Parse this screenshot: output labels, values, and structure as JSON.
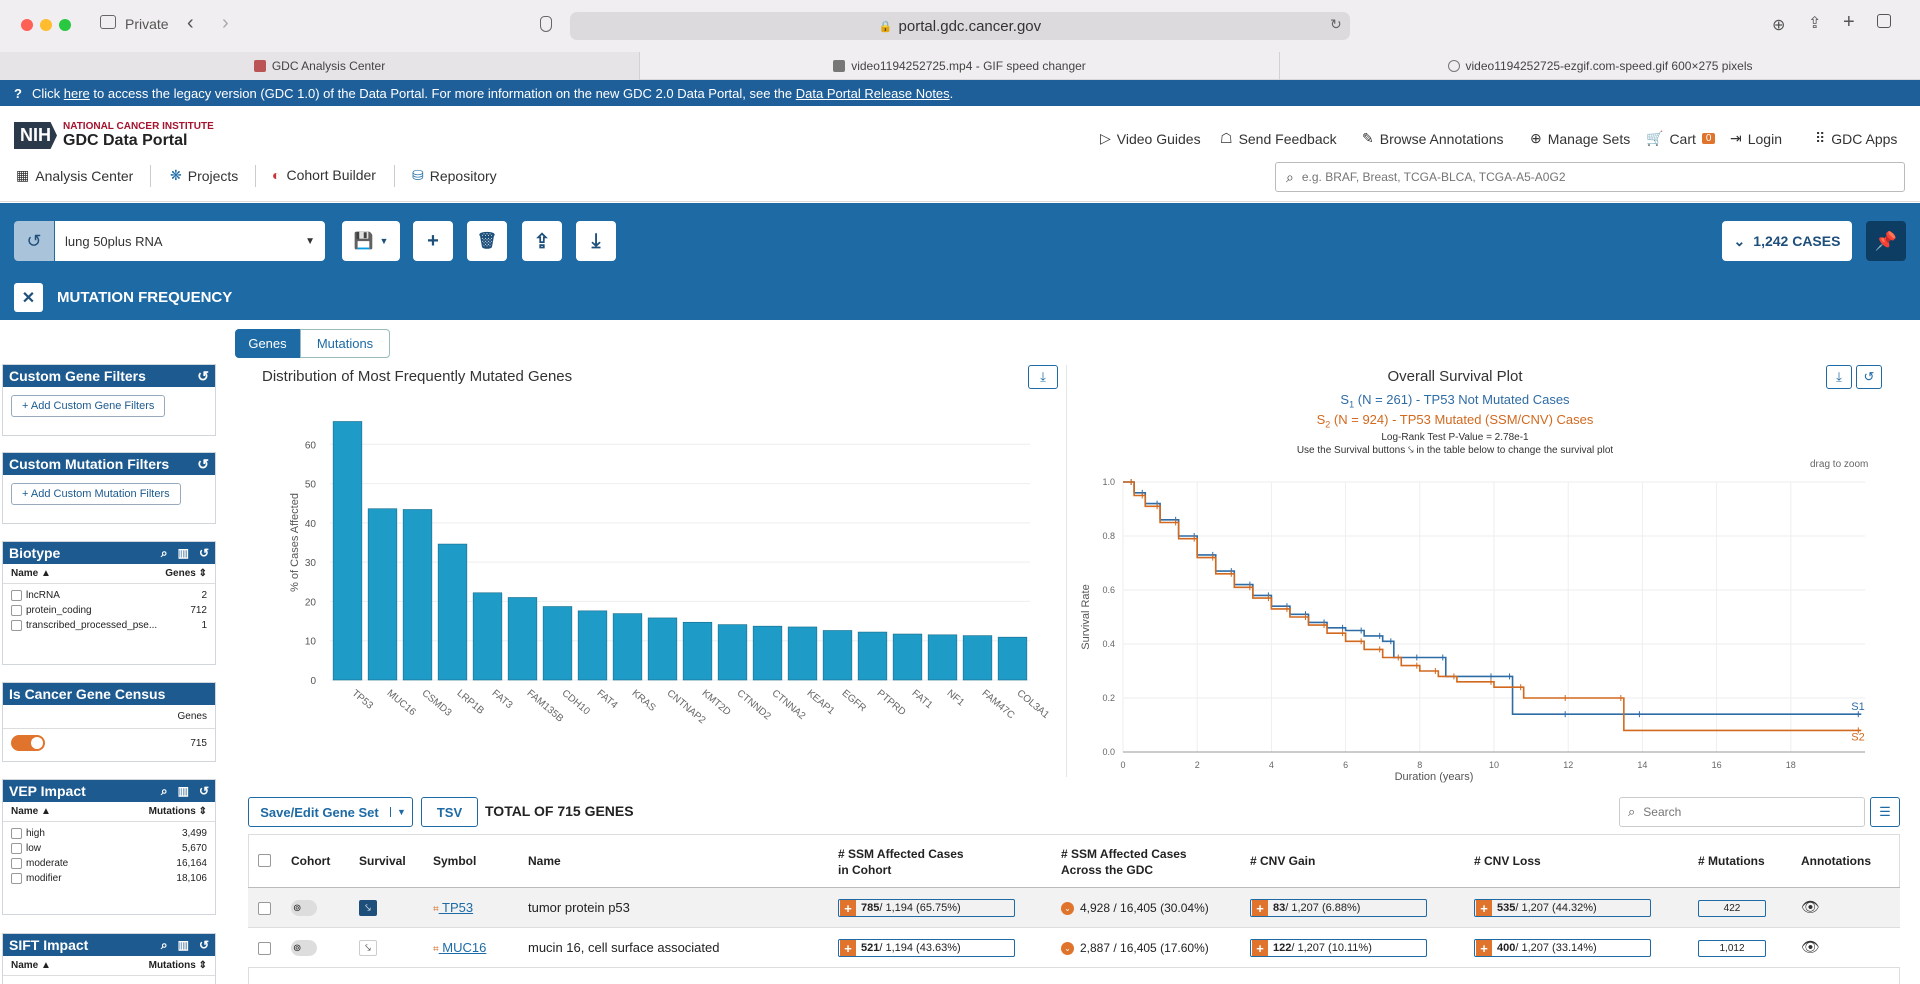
{
  "browser": {
    "mode_label": "Private",
    "url": "portal.gdc.cancer.gov",
    "tabs": [
      {
        "label": "GDC Analysis Center"
      },
      {
        "label": "video1194252725.mp4 - GIF speed changer"
      },
      {
        "label": "video1194252725-ezgif.com-speed.gif 600×275 pixels"
      }
    ]
  },
  "banner": {
    "part1": "Click",
    "link1": "here",
    "part2": "to access the legacy version (GDC 1.0) of the Data Portal. For more information on the new GDC 2.0 Data Portal, see the",
    "link2": "Data Portal Release Notes",
    "part3": "."
  },
  "header": {
    "logo_line1": "NATIONAL CANCER INSTITUTE",
    "logo_line2": "GDC Data Portal",
    "logo_nih": "NIH",
    "top_nav": [
      "Video Guides",
      "Send Feedback",
      "Browse Annotations",
      "Manage Sets",
      "Cart",
      "Login",
      "GDC Apps"
    ],
    "cart_count": "0",
    "bottom_nav": [
      "Analysis Center",
      "Projects",
      "Cohort Builder",
      "Repository"
    ],
    "search_placeholder": "e.g. BRAF, Breast, TCGA-BLCA, TCGA-A5-A0G2"
  },
  "cohort": {
    "name": "lung 50plus RNA",
    "cases": "1,242 CASES",
    "tool_title": "MUTATION FREQUENCY"
  },
  "sidebar": {
    "custom_gene": {
      "title": "Custom Gene Filters",
      "button": "+ Add Custom Gene Filters"
    },
    "custom_mutation": {
      "title": "Custom Mutation Filters",
      "button": "+ Add Custom Mutation Filters"
    },
    "biotype": {
      "title": "Biotype",
      "col1": "Name",
      "col2": "Genes",
      "rows": [
        {
          "name": "lncRNA",
          "count": "2"
        },
        {
          "name": "protein_coding",
          "count": "712"
        },
        {
          "name": "transcribed_processed_pse...",
          "count": "1"
        }
      ]
    },
    "census": {
      "title": "Is Cancer Gene Census",
      "col": "Genes",
      "count": "715"
    },
    "vep": {
      "title": "VEP Impact",
      "col1": "Name",
      "col2": "Mutations",
      "rows": [
        {
          "name": "high",
          "count": "3,499"
        },
        {
          "name": "low",
          "count": "5,670"
        },
        {
          "name": "moderate",
          "count": "16,164"
        },
        {
          "name": "modifier",
          "count": "18,106"
        }
      ]
    },
    "sift": {
      "title": "SIFT Impact",
      "col1": "Name",
      "col2": "Mutations"
    }
  },
  "main": {
    "tabs": [
      "Genes",
      "Mutations"
    ],
    "table": {
      "save_label": "Save/Edit Gene Set",
      "tsv_label": "TSV",
      "total_label": "TOTAL OF 715 GENES",
      "search_placeholder": "Search",
      "columns": [
        "Cohort",
        "Survival",
        "Symbol",
        "Name",
        "# SSM Affected Cases",
        "in Cohort",
        "# SSM Affected Cases",
        "Across the GDC",
        "# CNV Gain",
        "# CNV Loss",
        "# Mutations",
        "Annotations"
      ],
      "rows": [
        {
          "symbol": "TP53",
          "name": "tumor protein p53",
          "ssm_count": "785",
          "ssm_rest": " / 1,194 (65.75%)",
          "gdc": "4,928 / 16,405 (30.04%)",
          "gain_count": "83",
          "gain_rest": " / 1,207 (6.88%)",
          "loss_count": "535",
          "loss_rest": " / 1,207 (44.32%)",
          "mutations": "422"
        },
        {
          "symbol": "MUC16",
          "name": "mucin 16, cell surface associated",
          "ssm_count": "521",
          "ssm_rest": " / 1,194 (43.63%)",
          "gdc": "2,887 / 16,405 (17.60%)",
          "gain_count": "122",
          "gain_rest": " / 1,207 (10.11%)",
          "loss_count": "400",
          "loss_rest": " / 1,207 (33.14%)",
          "mutations": "1,012"
        }
      ]
    }
  },
  "chart_data": [
    {
      "type": "bar",
      "title": "Distribution of Most Frequently Mutated Genes",
      "ylabel": "% of Cases Affected",
      "xlabel": "",
      "ylim": [
        0,
        70
      ],
      "yticks": [
        "0",
        "10",
        "20",
        "30",
        "40",
        "50",
        "60"
      ],
      "categories": [
        "TP53",
        "MUC16",
        "CSMD3",
        "LRP1B",
        "FAT3",
        "FAM135B",
        "CDH10",
        "FAT4",
        "KRAS",
        "CNTNAP2",
        "KMT2D",
        "CTNND2",
        "CTNNA2",
        "KEAP1",
        "EGFR",
        "PTPRD",
        "FAT1",
        "NF1",
        "FAM47C",
        "COL3A1"
      ],
      "values": [
        65.8,
        43.6,
        43.4,
        34.6,
        22.2,
        21.0,
        18.7,
        17.6,
        16.9,
        15.8,
        14.7,
        14.1,
        13.7,
        13.5,
        12.6,
        12.2,
        11.7,
        11.5,
        11.3,
        10.9
      ],
      "color": "#1f9bc7"
    },
    {
      "type": "line",
      "title": "Overall Survival Plot",
      "legend_1": "(N = 261) - TP53 Not Mutated Cases",
      "legend_2": "(N = 924) - TP53 Mutated (SSM/CNV) Cases",
      "pvalue": "Log-Rank Test P-Value = 2.78e-1",
      "hint": "Use the Survival buttons ⤥ in the table below to change the survival plot",
      "zoom_hint": "drag to zoom",
      "xlabel": "Duration (years)",
      "ylabel": "Survival Rate",
      "xlim": [
        0,
        20
      ],
      "ylim": [
        0,
        1
      ],
      "xticks": [
        "0",
        "2",
        "4",
        "6",
        "8",
        "10",
        "12",
        "14",
        "16",
        "18"
      ],
      "yticks": [
        "0.0",
        "0.2",
        "0.4",
        "0.6",
        "0.8",
        "1.0"
      ],
      "series": [
        {
          "name": "S1",
          "color": "#2e6ca5",
          "x": [
            0,
            0.3,
            0.6,
            1,
            1.5,
            2,
            2.5,
            3,
            3.5,
            4,
            4.5,
            5,
            5.5,
            6,
            6.5,
            7,
            7.3,
            8,
            8.7,
            10,
            10.5,
            12,
            14,
            19.9
          ],
          "y": [
            1,
            0.96,
            0.92,
            0.86,
            0.8,
            0.73,
            0.67,
            0.62,
            0.58,
            0.54,
            0.51,
            0.48,
            0.46,
            0.45,
            0.43,
            0.41,
            0.35,
            0.35,
            0.28,
            0.28,
            0.14,
            0.14,
            0.14,
            0.14
          ]
        },
        {
          "name": "S2",
          "color": "#d2691e",
          "x": [
            0,
            0.3,
            0.6,
            1,
            1.5,
            2,
            2.5,
            3,
            3.5,
            4,
            4.5,
            5,
            5.5,
            6,
            6.5,
            7,
            7.5,
            8,
            8.5,
            9,
            10,
            10.8,
            12,
            13.5,
            19.9
          ],
          "y": [
            1,
            0.95,
            0.91,
            0.85,
            0.79,
            0.72,
            0.66,
            0.61,
            0.57,
            0.53,
            0.5,
            0.47,
            0.44,
            0.41,
            0.38,
            0.35,
            0.32,
            0.3,
            0.28,
            0.26,
            0.24,
            0.2,
            0.2,
            0.08,
            0.08
          ]
        }
      ]
    }
  ],
  "colors": {
    "brand": "#1d6aa5",
    "banner": "#1f5f99",
    "accent": "#e0742c"
  }
}
